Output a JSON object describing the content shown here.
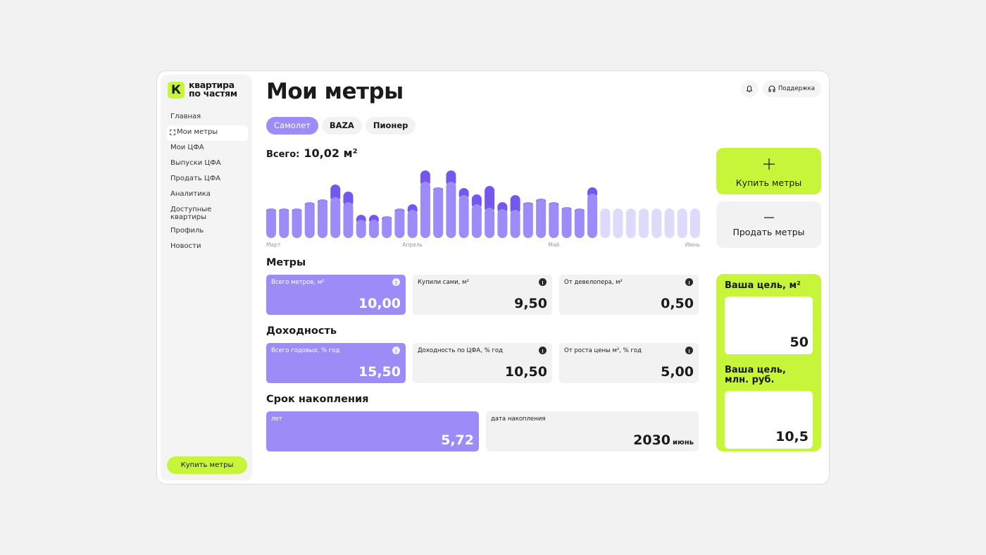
{
  "logo": {
    "mark": "К",
    "name": [
      "квартира",
      "по частям"
    ]
  },
  "sidebar": {
    "nav": [
      "Главная",
      "Мои метры",
      "Мои ЦФА",
      "Выпуски ЦФА",
      "Продать ЦФА",
      "Аналитика",
      "Доступные квартиры",
      "Профиль",
      "Новости"
    ],
    "button": "Купить метры"
  },
  "header": {
    "title": "Мои метры",
    "support": "Поддержка"
  },
  "tabs": [
    "Самолет",
    "BAZA",
    "Пионер"
  ],
  "total": {
    "label": "Всего:",
    "value": "10,02 м²"
  },
  "chart_data": {
    "type": "bar",
    "stacked": true,
    "categories": [
      "Март",
      null,
      null,
      null,
      null,
      null,
      null,
      null,
      null,
      null,
      null,
      "Апрель",
      null,
      null,
      null,
      null,
      null,
      null,
      null,
      null,
      null,
      null,
      "Май",
      null,
      null,
      null,
      null,
      null,
      null,
      null,
      null,
      null,
      null,
      "Июнь"
    ],
    "series": [
      {
        "color": "#9d8cf7",
        "values": [
          42,
          42,
          42,
          51,
          55,
          58,
          51,
          26,
          26,
          31,
          42,
          40,
          80,
          72,
          80,
          61,
          48,
          43,
          41,
          40,
          51,
          56,
          51,
          44,
          42,
          63,
          null,
          null,
          null,
          null,
          null,
          null,
          null,
          null
        ]
      },
      {
        "color": "#7657ee",
        "values": [
          0,
          0,
          0,
          0,
          0,
          18,
          15,
          7,
          7,
          0,
          0,
          8,
          16,
          0,
          16,
          10,
          14,
          31,
          10,
          21,
          0,
          0,
          0,
          0,
          0,
          9,
          null,
          null,
          null,
          null,
          null,
          null,
          null,
          null
        ]
      },
      {
        "color": "#dedafc",
        "values": [
          null,
          null,
          null,
          null,
          null,
          null,
          null,
          null,
          null,
          null,
          null,
          null,
          null,
          null,
          null,
          null,
          null,
          null,
          null,
          null,
          null,
          null,
          null,
          null,
          null,
          null,
          42,
          42,
          42,
          42,
          42,
          42,
          42,
          42
        ]
      }
    ],
    "ylim": [
      0,
      100
    ]
  },
  "actions": {
    "buy": "Купить метры",
    "sell": "Продать метры"
  },
  "sections": [
    {
      "title": "Метры",
      "cards": [
        {
          "label": "Всего метров, м²",
          "value": "10,00"
        },
        {
          "label": "Купили сами, м²",
          "value": "9,50"
        },
        {
          "label": "От девелопера, м²",
          "value": "0,50"
        }
      ]
    },
    {
      "title": "Доходность",
      "cards": [
        {
          "label": "Всего годовых, % год",
          "value": "15,50"
        },
        {
          "label": "Доходность по ЦФА, % год",
          "value": "10,50"
        },
        {
          "label": "От роста цены м², % год",
          "value": "5,00"
        }
      ]
    },
    {
      "title": "Срок накопления",
      "cards": [
        {
          "label": "лет",
          "value": "5,72"
        },
        {
          "label": "дата накопления",
          "value": "2030",
          "unit": "июнь"
        }
      ]
    }
  ],
  "goals": [
    {
      "label": "Ваша цель, м²",
      "value": "50"
    },
    {
      "label": "Ваша цель, млн. руб.",
      "value": "10,5"
    }
  ]
}
